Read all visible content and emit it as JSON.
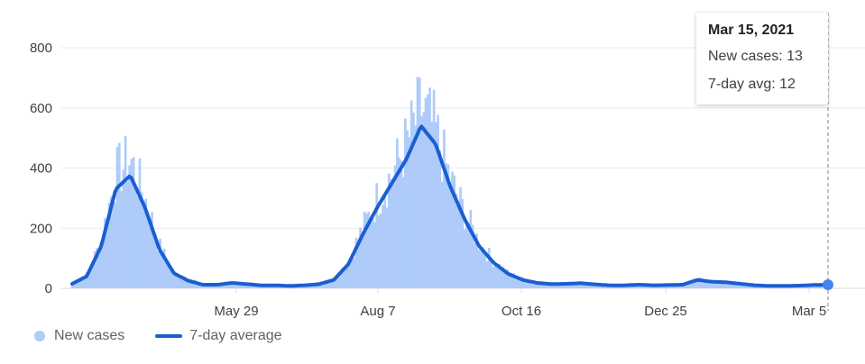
{
  "chart_data": {
    "type": "bar+line",
    "title": "",
    "xlabel": "",
    "ylabel": "",
    "ylim": [
      0,
      800
    ],
    "yticks": [
      0,
      200,
      400,
      600,
      800
    ],
    "xticks": [
      "May 29",
      "Aug 7",
      "Oct 16",
      "Dec 25",
      "Mar 5"
    ],
    "grid": true,
    "legend_position": "bottom-left",
    "x_range": [
      "Mar 10, 2020",
      "Mar 15, 2021"
    ],
    "series": [
      {
        "name": "New cases",
        "type": "bar",
        "color": "#aecbfa",
        "weekly_samples": [
          15,
          45,
          160,
          380,
          430,
          300,
          140,
          50,
          30,
          15,
          12,
          18,
          14,
          10,
          12,
          8,
          10,
          15,
          30,
          90,
          200,
          300,
          380,
          480,
          600,
          520,
          360,
          250,
          150,
          90,
          50,
          30,
          18,
          14,
          15,
          18,
          14,
          10,
          10,
          12,
          10,
          12,
          12,
          30,
          25,
          20,
          15,
          10,
          8,
          8,
          10,
          12,
          13
        ]
      },
      {
        "name": "7-day average",
        "type": "line",
        "color": "#1a5fd1",
        "weekly_samples": [
          15,
          40,
          140,
          330,
          375,
          270,
          130,
          50,
          25,
          12,
          12,
          18,
          14,
          10,
          10,
          8,
          10,
          14,
          28,
          80,
          180,
          270,
          350,
          430,
          540,
          480,
          340,
          230,
          140,
          85,
          48,
          28,
          18,
          14,
          15,
          17,
          13,
          10,
          10,
          12,
          10,
          11,
          12,
          28,
          22,
          20,
          15,
          10,
          8,
          8,
          9,
          11,
          12
        ]
      }
    ]
  },
  "tooltip": {
    "date": "Mar 15, 2021",
    "new_cases_label": "New cases: 13",
    "avg_label": "7-day avg: 12"
  },
  "legend": {
    "new_cases": "New cases",
    "avg": "7-day average"
  },
  "colors": {
    "bar": "#aecbfa",
    "line": "#1a5fd1",
    "grid": "#e8eaed",
    "marker": "#4285f4"
  }
}
